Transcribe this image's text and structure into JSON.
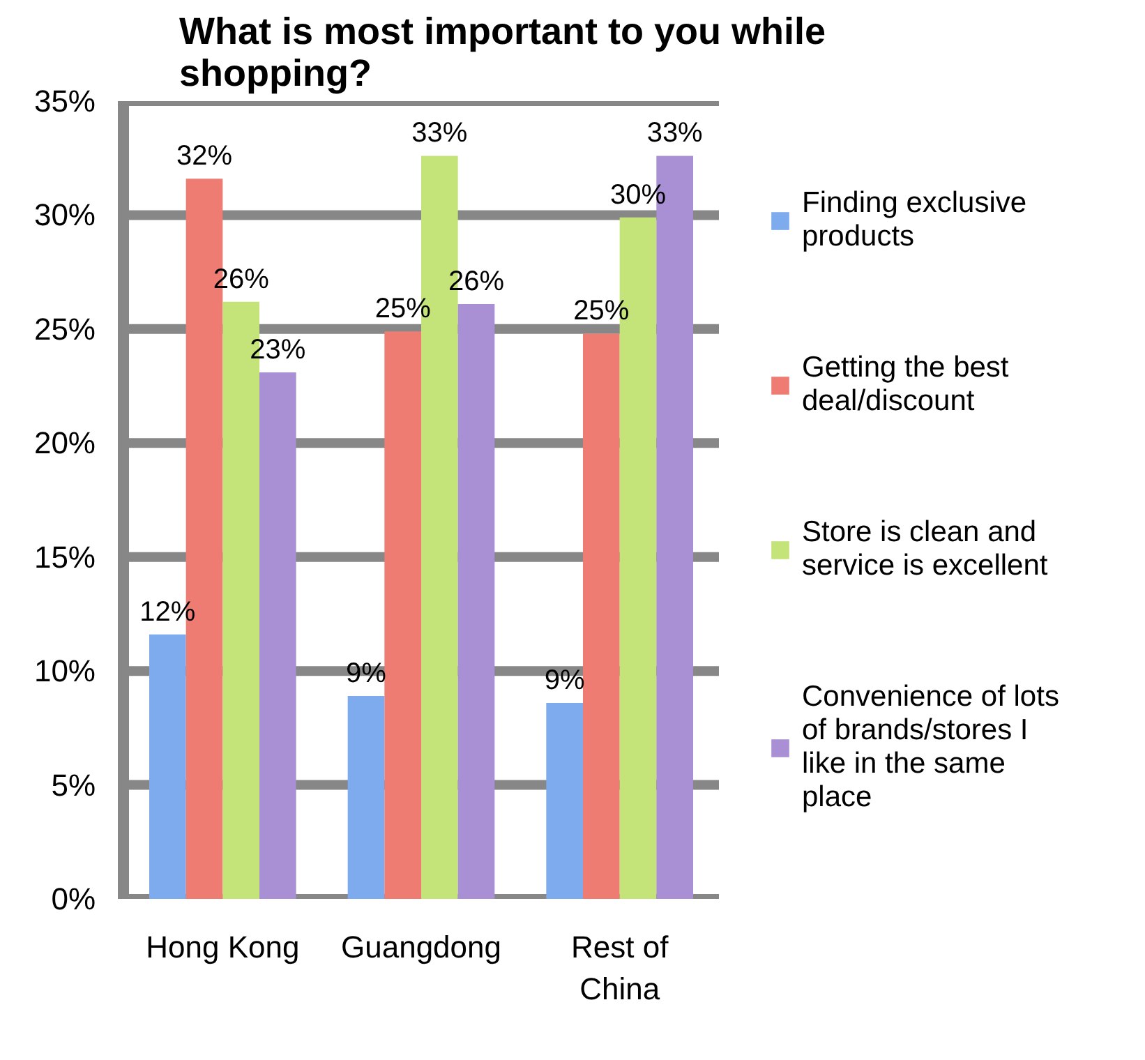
{
  "chart_data": {
    "type": "bar",
    "title": "What is most important to you while shopping?",
    "categories": [
      "Hong Kong",
      "Guangdong",
      "Rest of China"
    ],
    "series": [
      {
        "name": "Finding exclusive products",
        "color": "#7eaaee",
        "values": [
          11.6,
          8.9,
          8.6
        ],
        "value_labels": [
          "12%",
          "9%",
          "9%"
        ]
      },
      {
        "name": "Getting the best deal/discount",
        "color": "#ee7c72",
        "values": [
          31.6,
          24.9,
          24.8
        ],
        "value_labels": [
          "32%",
          "25%",
          "25%"
        ]
      },
      {
        "name": "Store is clean and service is excellent",
        "color": "#c4e479",
        "values": [
          26.2,
          32.6,
          29.9
        ],
        "value_labels": [
          "26%",
          "33%",
          "30%"
        ]
      },
      {
        "name": "Convenience of lots of brands/stores I like in the same place",
        "color": "#a98fd4",
        "values": [
          23.1,
          26.1,
          32.6
        ],
        "value_labels": [
          "23%",
          "26%",
          "33%"
        ]
      }
    ],
    "ylim": [
      0,
      35
    ],
    "yticks": [
      {
        "value": 0,
        "label": "0%"
      },
      {
        "value": 5,
        "label": "5%"
      },
      {
        "value": 10,
        "label": "10%"
      },
      {
        "value": 15,
        "label": "15%"
      },
      {
        "value": 20,
        "label": "20%"
      },
      {
        "value": 25,
        "label": "25%"
      },
      {
        "value": 30,
        "label": "30%"
      },
      {
        "value": 35,
        "label": "35%"
      }
    ],
    "grid": "y",
    "legend": "right"
  }
}
